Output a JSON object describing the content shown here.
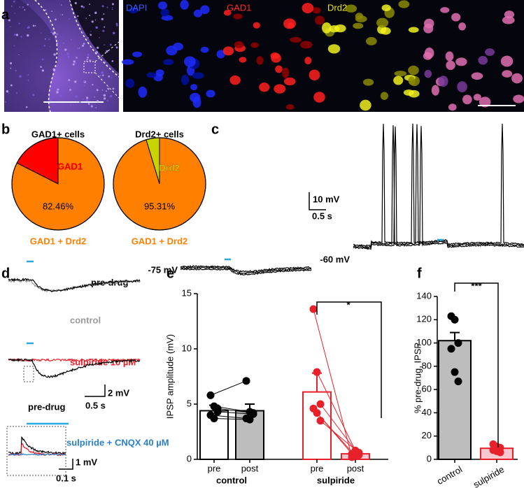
{
  "panel_labels": [
    "a",
    "b",
    "c",
    "d",
    "e",
    "f"
  ],
  "panel_a": {
    "channels": [
      "DAPI",
      "GAD1",
      "Drd2"
    ]
  },
  "panel_c": {
    "scale_y": "10 mV",
    "scale_x": "0.5 s",
    "trace_labels": [
      "-75 mV",
      "-60 mV"
    ]
  },
  "panel_d": {
    "labels": [
      "pre-drug",
      "control",
      "sulpiride 10 µM",
      "pre-drug",
      "sulpiride + CNQX 40 µM"
    ],
    "scales": [
      "2 mV",
      "0.5 s",
      "1 mV",
      "0.1 s"
    ]
  },
  "chart_data": [
    {
      "type": "pie",
      "title": "GAD1+ cells",
      "categories": [
        "GAD1",
        "GAD1 + Drd2"
      ],
      "values": [
        17.54,
        82.46
      ],
      "value_labels": [
        null,
        "82.46%"
      ],
      "colors": [
        "#ff0000",
        "#ff8000"
      ]
    },
    {
      "type": "pie",
      "title": "Drd2+ cells",
      "categories": [
        "Drd2",
        "GAD1 + Drd2"
      ],
      "values": [
        4.69,
        95.31
      ],
      "value_labels": [
        null,
        "95.31%"
      ],
      "colors": [
        "#c8d400",
        "#ff8000"
      ]
    },
    {
      "type": "bar",
      "y_label": "IPSP amplitude (mV)",
      "categories": [
        "pre",
        "post",
        "pre",
        "post"
      ],
      "groups": [
        "control",
        "sulpiride"
      ],
      "values": [
        4.4,
        4.4,
        6.1,
        0.5
      ],
      "errors": [
        0.5,
        0.6,
        1.7,
        0.2
      ],
      "points": [
        [
          5.8,
          4.8,
          4.3,
          4.0,
          3.7,
          4.6
        ],
        [
          7.1,
          4.3,
          4.1,
          3.7,
          3.6,
          4.2
        ],
        [
          13.6,
          7.9,
          5.0,
          4.6,
          4.2,
          3.5
        ],
        [
          0.2,
          0.8,
          0.4,
          0.5,
          0.3,
          0.6
        ]
      ],
      "fill": [
        "#ffffff",
        "#bdbdbd",
        "#ffffff",
        "#f9c7d0"
      ],
      "edge": [
        "#000000",
        "#000000",
        "#e8202a",
        "#e8202a"
      ],
      "ylim": [
        0,
        15
      ],
      "yticks": [
        0,
        5,
        10,
        15
      ],
      "significance": "*"
    },
    {
      "type": "bar",
      "y_label": "% pre-drug, IPSP",
      "categories": [
        "control",
        "sulpiride"
      ],
      "values": [
        102,
        9.5
      ],
      "errors": [
        7,
        2
      ],
      "points": [
        [
          123,
          120,
          100,
          95,
          75,
          67
        ],
        [
          13,
          11,
          10,
          8,
          7,
          6
        ]
      ],
      "fill": [
        "#bdbdbd",
        "#f9c7d0"
      ],
      "edge": [
        "#000000",
        "#e8202a"
      ],
      "ylim": [
        0,
        140
      ],
      "yticks": [
        0,
        20,
        40,
        60,
        80,
        100,
        120,
        140
      ],
      "significance": "***"
    }
  ]
}
